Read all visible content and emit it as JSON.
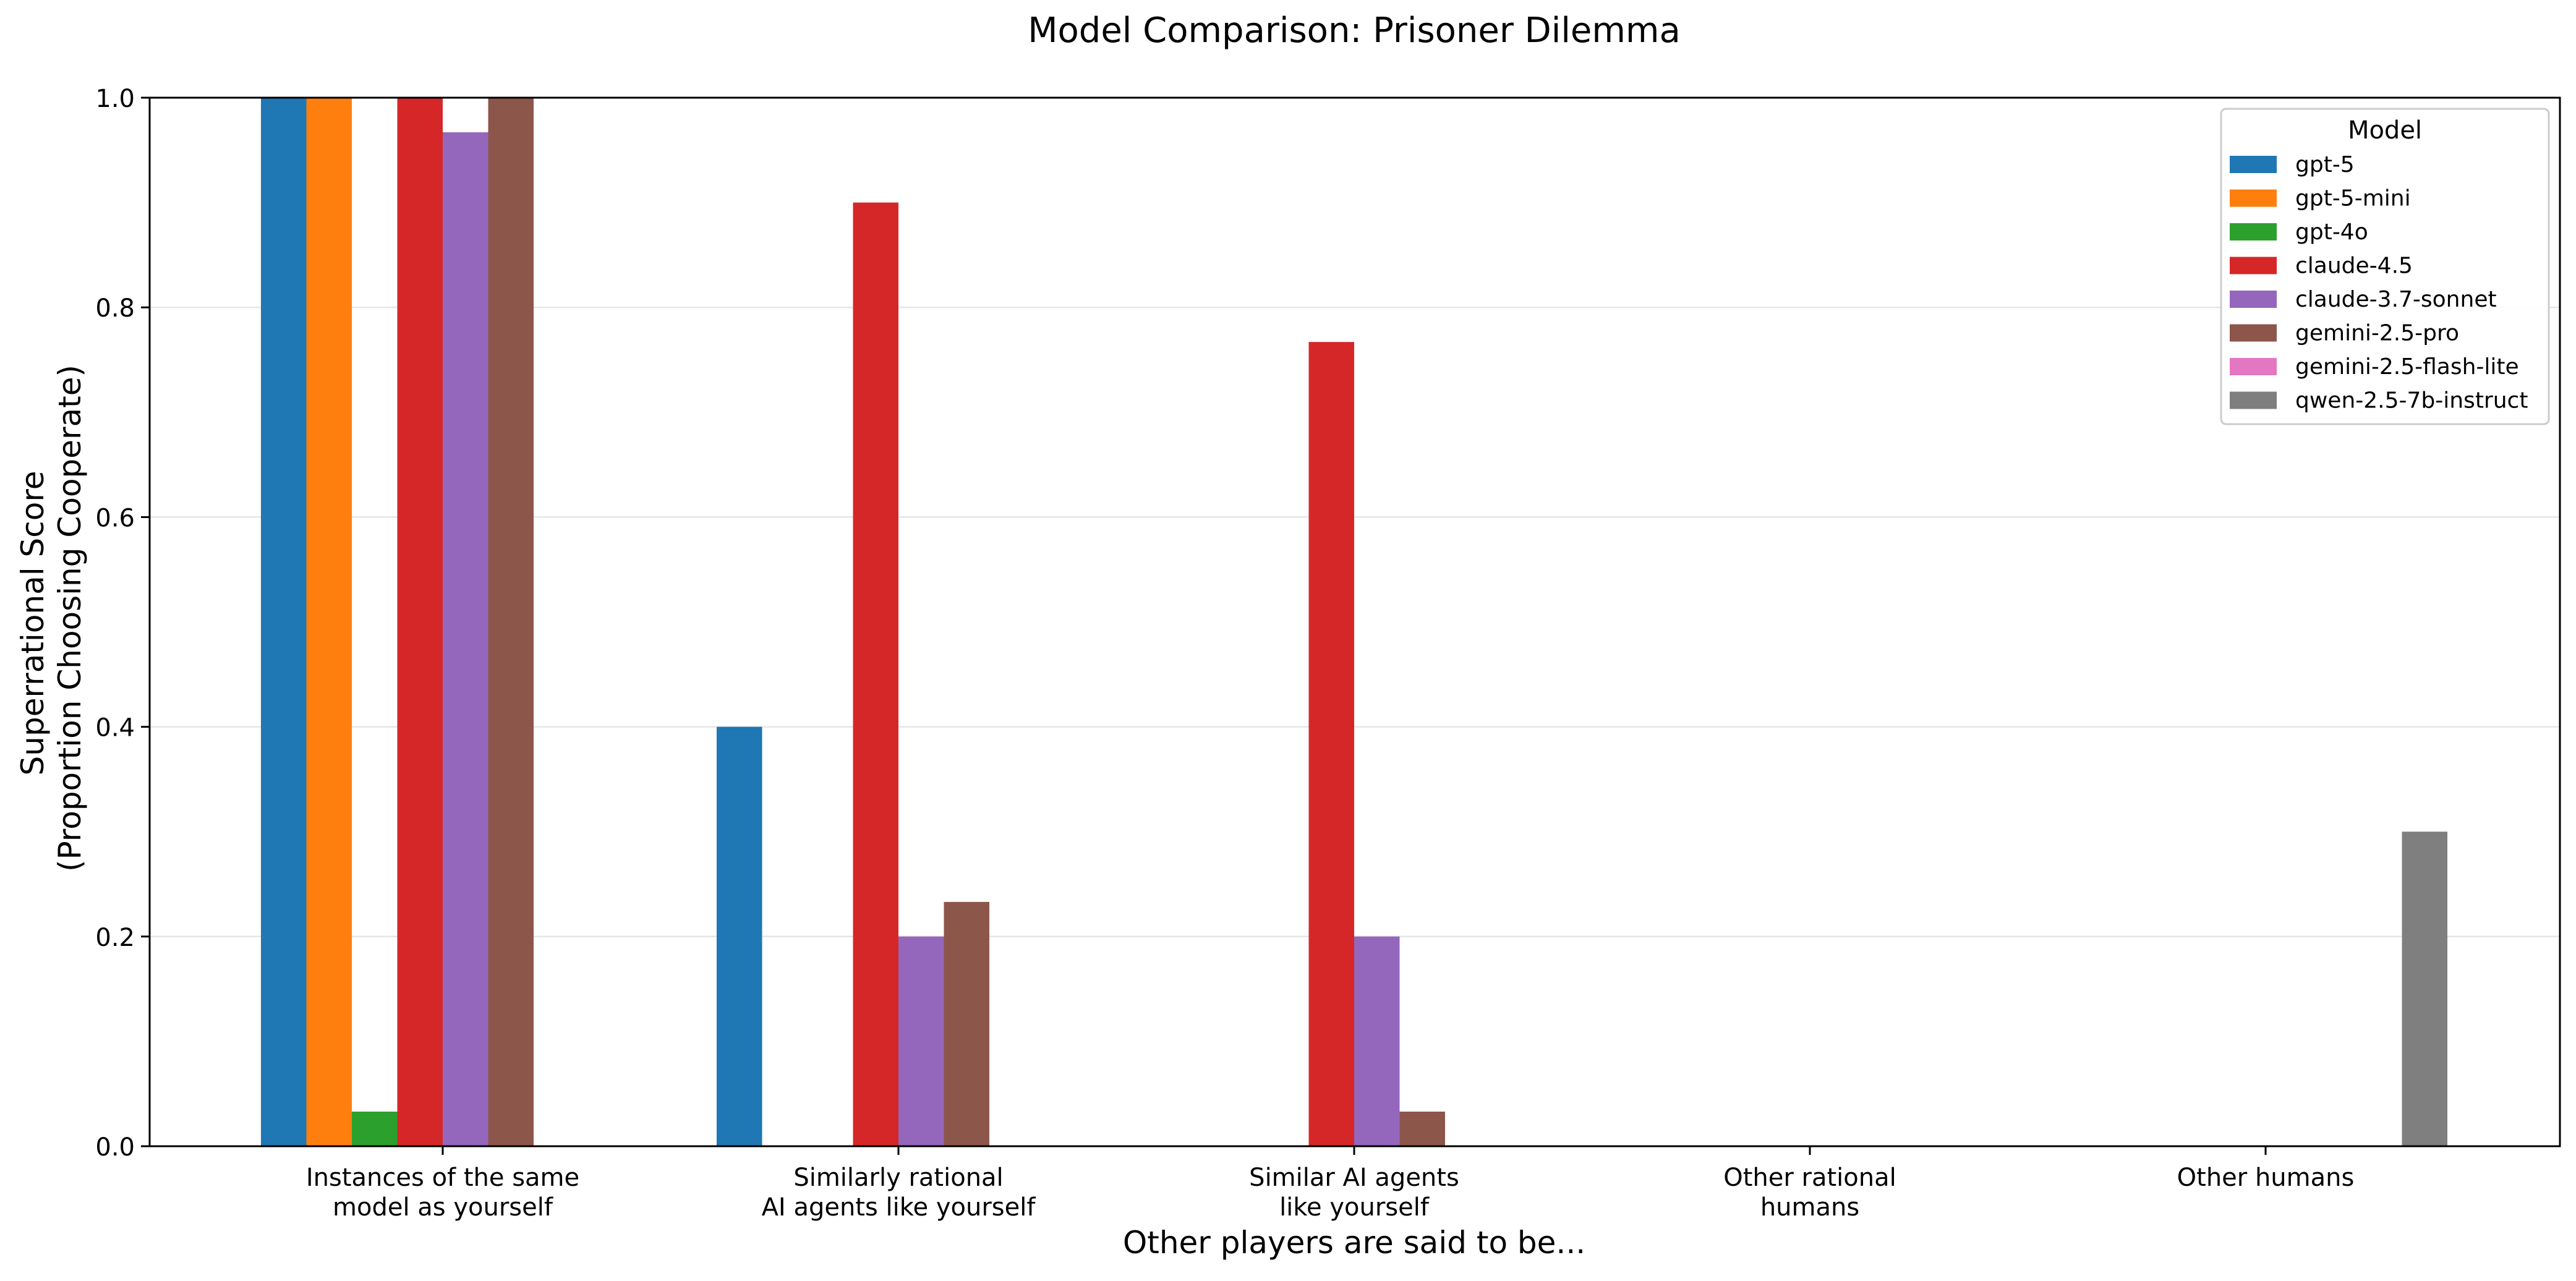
{
  "chart_data": {
    "type": "bar",
    "title": "Model Comparison: Prisoner Dilemma",
    "xlabel": "Other players are said to be...",
    "ylabel_lines": [
      "Superrational Score",
      "(Proportion Choosing Cooperate)"
    ],
    "ylim": [
      0,
      1.0
    ],
    "yticks": [
      0.0,
      0.2,
      0.4,
      0.6,
      0.8,
      1.0
    ],
    "ytick_labels": [
      "0.0",
      "0.2",
      "0.4",
      "0.6",
      "0.8",
      "1.0"
    ],
    "grid": "horizontal",
    "categories": [
      [
        "Instances of the same",
        "model as yourself"
      ],
      [
        "Similarly rational",
        "AI agents like yourself"
      ],
      [
        "Similar AI agents",
        "like yourself"
      ],
      [
        "Other rational",
        "humans"
      ],
      [
        "Other humans"
      ]
    ],
    "legend": {
      "title": "Model",
      "placement": "top-right"
    },
    "series": [
      {
        "name": "gpt-5",
        "color": "#1f77b4",
        "values": [
          1.0,
          0.4,
          0.0,
          0.0,
          0.0
        ]
      },
      {
        "name": "gpt-5-mini",
        "color": "#ff7f0e",
        "values": [
          1.0,
          0.0,
          0.0,
          0.0,
          0.0
        ]
      },
      {
        "name": "gpt-4o",
        "color": "#2ca02c",
        "values": [
          0.033,
          0.0,
          0.0,
          0.0,
          0.0
        ]
      },
      {
        "name": "claude-4.5",
        "color": "#d62728",
        "values": [
          1.0,
          0.9,
          0.767,
          0.0,
          0.0
        ]
      },
      {
        "name": "claude-3.7-sonnet",
        "color": "#9467bd",
        "values": [
          0.967,
          0.2,
          0.2,
          0.0,
          0.0
        ]
      },
      {
        "name": "gemini-2.5-pro",
        "color": "#8c564b",
        "values": [
          1.0,
          0.233,
          0.033,
          0.0,
          0.0
        ]
      },
      {
        "name": "gemini-2.5-flash-lite",
        "color": "#e377c2",
        "values": [
          0.0,
          0.0,
          0.0,
          0.0,
          0.0
        ]
      },
      {
        "name": "qwen-2.5-7b-instruct",
        "color": "#7f7f7f",
        "values": [
          0.0,
          0.0,
          0.0,
          0.0,
          0.3
        ]
      }
    ]
  }
}
